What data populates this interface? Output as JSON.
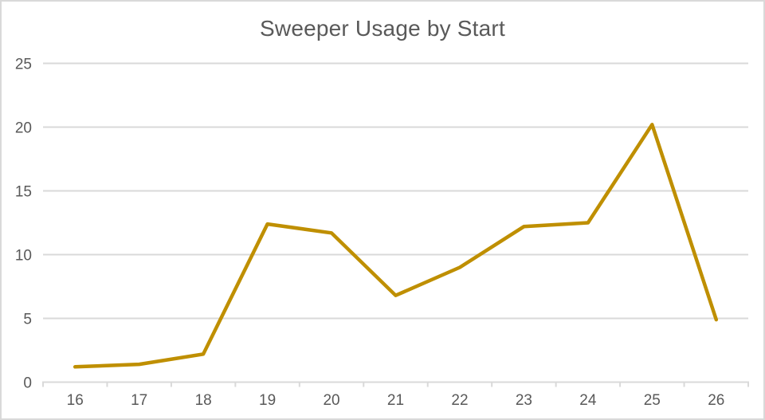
{
  "chart_data": {
    "type": "line",
    "title": "Sweeper Usage by Start",
    "xlabel": "",
    "ylabel": "",
    "categories": [
      "16",
      "17",
      "18",
      "19",
      "20",
      "21",
      "22",
      "23",
      "24",
      "25",
      "26"
    ],
    "series": [
      {
        "name": "Sweeper Usage",
        "values": [
          1.2,
          1.4,
          2.2,
          12.4,
          11.7,
          6.8,
          9.0,
          12.2,
          12.5,
          20.2,
          4.9
        ]
      }
    ],
    "ylim": [
      0,
      25
    ],
    "yticks": [
      0,
      5,
      10,
      15,
      20,
      25
    ],
    "grid": true,
    "legend": false,
    "legend_position": "none",
    "colors": {
      "line": "#BF8F00",
      "gridline": "#D9D9D9",
      "axis": "#D9D9D9",
      "tick_label": "#595959",
      "title": "#595959",
      "background": "#FFFFFF",
      "border": "#D9D9D9"
    }
  }
}
